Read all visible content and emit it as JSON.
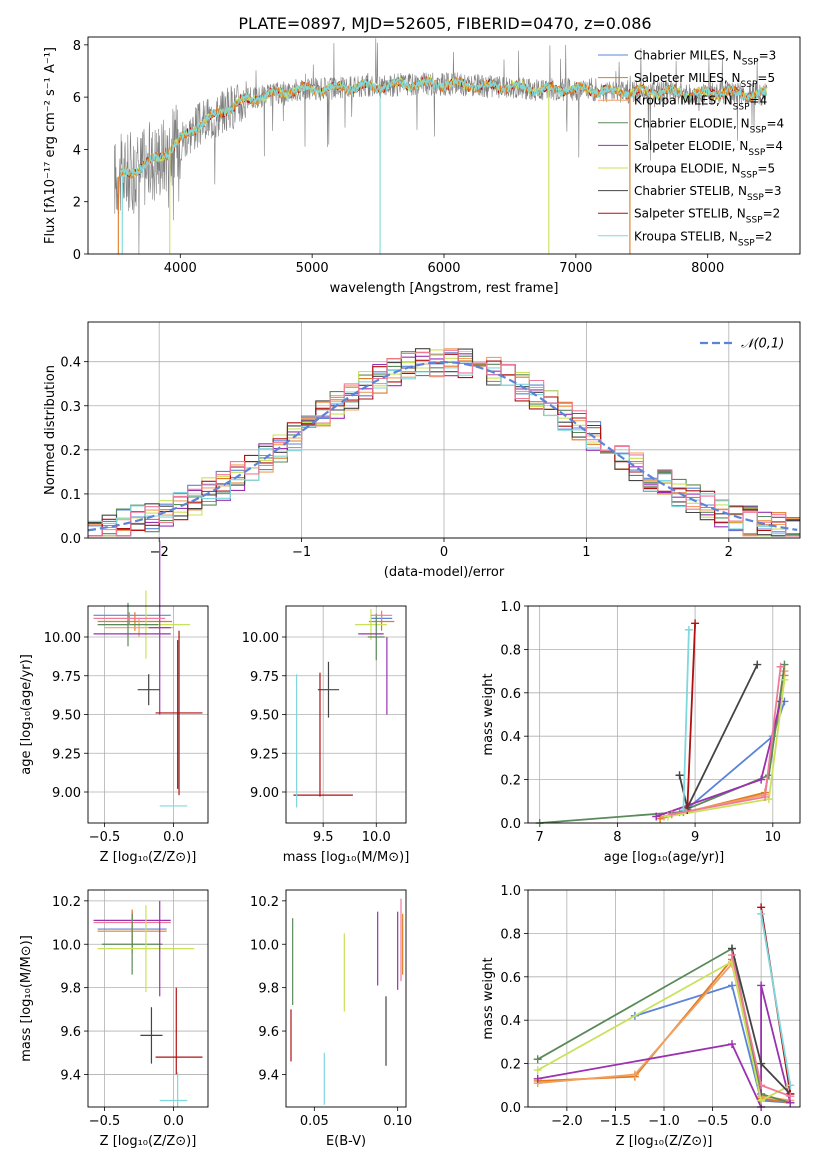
{
  "figure_title": "PLATE=0897, MJD=52605, FIBERID=0470, z=0.086",
  "colors": {
    "Chabrier MILES": "#5b84d8",
    "Salpeter MILES": "#e07b22",
    "Kroupa MILES": "#f0a060",
    "Chabrier ELODIE": "#5a8a5a",
    "Salpeter ELODIE": "#9b30b0",
    "Kroupa ELODIE": "#c8e25a",
    "Chabrier STELIB": "#444444",
    "Salpeter STELIB": "#b01010",
    "Kroupa STELIB": "#7fd8dc",
    "pink": "#f07a9a",
    "gaussian": "#5b84d8",
    "grid": "#b0b0b0"
  },
  "chart_data": [
    {
      "id": "spectrum",
      "type": "line",
      "xlabel": "wavelength [Angstrom, rest frame]",
      "ylabel": "Flux [fλ10⁻¹⁷ erg cm⁻² s⁻¹ A⁻¹]",
      "xlim": [
        3300,
        8700
      ],
      "ylim": [
        0,
        8.3
      ],
      "xticks": [
        4000,
        5000,
        6000,
        7000,
        8000
      ],
      "yticks": [
        0,
        2,
        4,
        6,
        8
      ],
      "grid": false,
      "legend_position": "right",
      "legend": [
        "Chabrier MILES, N_SSP=3",
        "Salpeter MILES, N_SSP=5",
        "Kroupa MILES, N_SSP=4",
        "Chabrier ELODIE, N_SSP=4",
        "Salpeter ELODIE, N_SSP=4",
        "Kroupa ELODIE, N_SSP=5",
        "Chabrier STELIB, N_SSP=3",
        "Salpeter STELIB, N_SSP=2",
        "Kroupa STELIB, N_SSP=2"
      ],
      "continuum_x": [
        3500,
        3700,
        3900,
        4100,
        4300,
        4500,
        4700,
        4900,
        5100,
        5300,
        5500,
        5700,
        5900,
        6100,
        6300,
        6500,
        6700,
        6900,
        7100,
        7300,
        7500,
        7700,
        7900,
        8100,
        8300,
        8400
      ],
      "continuum_y": [
        2.9,
        3.3,
        3.9,
        4.8,
        5.4,
        5.9,
        6.1,
        6.3,
        6.3,
        6.4,
        6.4,
        6.5,
        6.5,
        6.5,
        6.4,
        6.4,
        6.3,
        6.3,
        6.3,
        6.2,
        6.2,
        6.2,
        6.1,
        6.2,
        6.1,
        6.1
      ]
    },
    {
      "id": "residuals",
      "type": "step-histogram",
      "xlabel": "(data-model)/error",
      "ylabel": "Normed distribution",
      "xlim": [
        -2.5,
        2.5
      ],
      "ylim": [
        0,
        0.49
      ],
      "xticks": [
        -2,
        -1,
        0,
        1,
        2
      ],
      "yticks": [
        0.0,
        0.1,
        0.2,
        0.3,
        0.4
      ],
      "grid": true,
      "legend_position": "top-right",
      "legend": [
        "𝒩(0,1)"
      ],
      "bin_width": 0.1
    },
    {
      "id": "age-Z",
      "type": "errorbar",
      "xlabel": "Z [log₁₀(Z/Z⊙)]",
      "ylabel": "age  [log₁₀(age/yr)]",
      "xlim": [
        -0.62,
        0.25
      ],
      "ylim": [
        8.8,
        10.2
      ],
      "xticks": [
        -0.5,
        0.0
      ],
      "yticks": [
        9.0,
        9.25,
        9.5,
        9.75,
        10.0
      ],
      "grid": true,
      "points": [
        {
          "series": "Chabrier MILES",
          "x": -0.3,
          "xerr": 0.28,
          "y": 10.14,
          "yerr": 0.0
        },
        {
          "series": "Salpeter MILES",
          "x": -0.28,
          "xerr": 0.27,
          "y": 10.1,
          "yerr": 0.06
        },
        {
          "series": "Kroupa MILES",
          "x": -0.25,
          "xerr": 0.25,
          "y": 10.06,
          "yerr": 0.06
        },
        {
          "series": "Kroupa ELODIE",
          "x": -0.2,
          "xerr": 0.32,
          "y": 10.08,
          "yerr": 0.22
        },
        {
          "series": "Chabrier ELODIE",
          "x": -0.33,
          "xerr": 0.22,
          "y": 10.08,
          "yerr": 0.14
        },
        {
          "series": "Salpeter ELODIE",
          "x": -0.3,
          "xerr": 0.28,
          "y": 10.02,
          "yerr": 0.0
        },
        {
          "series": "Salpeter ELODIE",
          "x": -0.1,
          "xerr": 0.08,
          "y": 10.06,
          "yerr": 0.56
        },
        {
          "series": "pink",
          "x": -0.32,
          "xerr": 0.26,
          "y": 10.12,
          "yerr": 0.04
        },
        {
          "series": "Chabrier STELIB",
          "x": -0.18,
          "xerr": 0.08,
          "y": 9.66,
          "yerr": 0.1
        },
        {
          "series": "Chabrier STELIB",
          "x": 0.03,
          "xerr": 0.0,
          "y": 9.5,
          "yerr": 0.48
        },
        {
          "series": "Salpeter STELIB",
          "x": 0.04,
          "xerr": 0.17,
          "y": 9.51,
          "yerr": 0.53
        },
        {
          "series": "Kroupa STELIB",
          "x": 0.0,
          "xerr": 0.1,
          "y": 8.91,
          "yerr": 0.0
        }
      ]
    },
    {
      "id": "age-mass",
      "type": "errorbar",
      "xlabel": "mass [log₁₀(M/M⊙)]",
      "ylabel": "",
      "xlim": [
        9.15,
        10.28
      ],
      "ylim": [
        8.8,
        10.2
      ],
      "xticks": [
        9.5,
        10.0
      ],
      "yticks": [
        9.0,
        9.25,
        9.5,
        9.75,
        10.0
      ],
      "grid": true,
      "points": [
        {
          "series": "Chabrier MILES",
          "x": 10.05,
          "xerr": 0.1,
          "y": 10.12,
          "yerr": 0.0
        },
        {
          "series": "Salpeter MILES",
          "x": 10.05,
          "xerr": 0.12,
          "y": 10.1,
          "yerr": 0.06
        },
        {
          "series": "Kroupa ELODIE",
          "x": 9.95,
          "xerr": 0.15,
          "y": 10.08,
          "yerr": 0.1
        },
        {
          "series": "Chabrier ELODIE",
          "x": 10.0,
          "xerr": 0.08,
          "y": 10.0,
          "yerr": 0.15
        },
        {
          "series": "Salpeter ELODIE",
          "x": 9.95,
          "xerr": 0.12,
          "y": 10.02,
          "yerr": 0.0
        },
        {
          "series": "Salpeter ELODIE",
          "x": 10.1,
          "xerr": 0.0,
          "y": 9.75,
          "yerr": 0.25
        },
        {
          "series": "pink",
          "x": 10.05,
          "xerr": 0.1,
          "y": 10.14,
          "yerr": 0.03
        },
        {
          "series": "Chabrier STELIB",
          "x": 9.55,
          "xerr": 0.1,
          "y": 9.66,
          "yerr": 0.18
        },
        {
          "series": "Salpeter STELIB",
          "x": 9.5,
          "xerr": 0.28,
          "y": 8.98,
          "yerr": 0.0
        },
        {
          "series": "Salpeter STELIB",
          "x": 9.47,
          "xerr": 0.0,
          "y": 9.37,
          "yerr": 0.4
        },
        {
          "series": "Kroupa STELIB",
          "x": 9.25,
          "xerr": 0.0,
          "y": 9.33,
          "yerr": 0.43
        },
        {
          "series": "Kroupa STELIB",
          "x": 9.27,
          "xerr": 0.0,
          "y": 8.91,
          "yerr": 0.0
        }
      ]
    },
    {
      "id": "weight-age",
      "type": "line",
      "xlabel": "age  [log₁₀(age/yr)]",
      "ylabel": "mass weight",
      "xlim": [
        6.85,
        10.35
      ],
      "ylim": [
        0,
        1.0
      ],
      "xticks": [
        7,
        8,
        9,
        10
      ],
      "yticks": [
        0.0,
        0.2,
        0.4,
        0.6,
        0.8,
        1.0
      ],
      "grid": true,
      "series": [
        {
          "name": "Chabrier MILES",
          "x": [
            8.85,
            10.0,
            10.15
          ],
          "y": [
            0.05,
            0.4,
            0.56
          ]
        },
        {
          "name": "Salpeter MILES",
          "x": [
            8.55,
            9.9,
            10.15
          ],
          "y": [
            0.02,
            0.14,
            0.68
          ]
        },
        {
          "name": "Kroupa MILES",
          "x": [
            8.6,
            9.9,
            10.15
          ],
          "y": [
            0.03,
            0.13,
            0.7
          ]
        },
        {
          "name": "Chabrier ELODIE",
          "x": [
            7.0,
            8.8,
            9.95,
            10.15
          ],
          "y": [
            0.0,
            0.05,
            0.22,
            0.73
          ]
        },
        {
          "name": "Salpeter ELODIE",
          "x": [
            8.5,
            9.85,
            10.1
          ],
          "y": [
            0.03,
            0.2,
            0.56
          ]
        },
        {
          "name": "Kroupa ELODIE",
          "x": [
            8.65,
            9.95,
            10.15
          ],
          "y": [
            0.03,
            0.11,
            0.66
          ]
        },
        {
          "name": "Chabrier STELIB",
          "x": [
            8.8,
            8.9,
            9.8
          ],
          "y": [
            0.22,
            0.07,
            0.73
          ]
        },
        {
          "name": "Salpeter STELIB",
          "x": [
            8.9,
            9.0
          ],
          "y": [
            0.06,
            0.92
          ]
        },
        {
          "name": "Kroupa STELIB",
          "x": [
            8.85,
            8.92
          ],
          "y": [
            0.06,
            0.89
          ]
        },
        {
          "name": "pink",
          "x": [
            8.7,
            9.9,
            10.1
          ],
          "y": [
            0.04,
            0.12,
            0.72
          ]
        }
      ]
    },
    {
      "id": "mass-Z",
      "type": "errorbar",
      "xlabel": "Z [log₁₀(Z/Z⊙)]",
      "ylabel": "mass [log₁₀(M/M⊙)]",
      "xlim": [
        -0.62,
        0.25
      ],
      "ylim": [
        9.25,
        10.25
      ],
      "xticks": [
        -0.5,
        0.0
      ],
      "yticks": [
        9.4,
        9.6,
        9.8,
        10.0,
        10.2
      ],
      "grid": true,
      "points": [
        {
          "series": "Salpeter ELODIE",
          "x": -0.3,
          "xerr": 0.28,
          "y": 10.11,
          "yerr": 0.0
        },
        {
          "series": "pink",
          "x": -0.3,
          "xerr": 0.28,
          "y": 10.1,
          "yerr": 0.0
        },
        {
          "series": "Chabrier MILES",
          "x": -0.3,
          "xerr": 0.25,
          "y": 10.07,
          "yerr": 0.08
        },
        {
          "series": "Salpeter MILES",
          "x": -0.3,
          "xerr": 0.25,
          "y": 10.06,
          "yerr": 0.1
        },
        {
          "series": "Kroupa MILES",
          "x": -0.3,
          "xerr": 0.25,
          "y": 10.06,
          "yerr": 0.07
        },
        {
          "series": "Chabrier ELODIE",
          "x": -0.3,
          "xerr": 0.22,
          "y": 10.0,
          "yerr": 0.14
        },
        {
          "series": "Kroupa ELODIE",
          "x": -0.2,
          "xerr": 0.35,
          "y": 9.98,
          "yerr": 0.2
        },
        {
          "series": "Salpeter ELODIE",
          "x": -0.1,
          "xerr": 0.0,
          "y": 9.98,
          "yerr": 0.22
        },
        {
          "series": "Chabrier STELIB",
          "x": -0.16,
          "xerr": 0.08,
          "y": 9.58,
          "yerr": 0.13
        },
        {
          "series": "Salpeter STELIB",
          "x": 0.04,
          "xerr": 0.17,
          "y": 9.48,
          "yerr": 0.0
        },
        {
          "series": "Salpeter STELIB",
          "x": 0.02,
          "xerr": 0.0,
          "y": 9.6,
          "yerr": 0.2
        },
        {
          "series": "Kroupa STELIB",
          "x": 0.0,
          "xerr": 0.1,
          "y": 9.28,
          "yerr": 0.0
        },
        {
          "series": "Kroupa STELIB",
          "x": 0.03,
          "xerr": 0.0,
          "y": 9.33,
          "yerr": 0.08
        }
      ]
    },
    {
      "id": "mass-EBV",
      "type": "errorbar",
      "xlabel": "E(B-V)",
      "ylabel": "",
      "xlim": [
        0.033,
        0.105
      ],
      "ylim": [
        9.25,
        10.25
      ],
      "xticks": [
        0.05,
        0.1
      ],
      "yticks": [
        9.4,
        9.6,
        9.8,
        10.0,
        10.2
      ],
      "grid": false,
      "points": [
        {
          "series": "Salpeter STELIB",
          "x": 0.036,
          "xerr": 0.0,
          "y": 9.58,
          "yerr": 0.12
        },
        {
          "series": "Chabrier ELODIE",
          "x": 0.037,
          "xerr": 0.0,
          "y": 9.92,
          "yerr": 0.2
        },
        {
          "series": "Kroupa STELIB",
          "x": 0.056,
          "xerr": 0.0,
          "y": 9.38,
          "yerr": 0.12
        },
        {
          "series": "Kroupa ELODIE",
          "x": 0.068,
          "xerr": 0.0,
          "y": 9.87,
          "yerr": 0.18
        },
        {
          "series": "Salpeter ELODIE",
          "x": 0.088,
          "xerr": 0.0,
          "y": 9.98,
          "yerr": 0.17
        },
        {
          "series": "Chabrier STELIB",
          "x": 0.093,
          "xerr": 0.0,
          "y": 9.6,
          "yerr": 0.16
        },
        {
          "series": "Salpeter ELODIE",
          "x": 0.1,
          "xerr": 0.0,
          "y": 9.97,
          "yerr": 0.18
        },
        {
          "series": "pink",
          "x": 0.102,
          "xerr": 0.0,
          "y": 10.02,
          "yerr": 0.19
        },
        {
          "series": "Salpeter MILES",
          "x": 0.103,
          "xerr": 0.0,
          "y": 10.0,
          "yerr": 0.14
        }
      ]
    },
    {
      "id": "weight-Z",
      "type": "line",
      "xlabel": "Z [log₁₀(Z/Z⊙)]",
      "ylabel": "mass weight",
      "xlim": [
        -2.4,
        0.4
      ],
      "ylim": [
        0,
        1.0
      ],
      "xticks": [
        -2.0,
        -1.5,
        -1.0,
        -0.5,
        0.0
      ],
      "yticks": [
        0.0,
        0.2,
        0.4,
        0.6,
        0.8,
        1.0
      ],
      "grid": true,
      "series": [
        {
          "name": "Chabrier MILES",
          "x": [
            -1.3,
            -0.3,
            0.0,
            0.3
          ],
          "y": [
            0.42,
            0.56,
            0.03,
            0.02
          ]
        },
        {
          "name": "Salpeter MILES",
          "x": [
            -2.3,
            -1.3,
            -0.3,
            0.0,
            0.3
          ],
          "y": [
            0.12,
            0.14,
            0.68,
            0.04,
            0.02
          ]
        },
        {
          "name": "Kroupa MILES",
          "x": [
            -2.3,
            -1.3,
            -0.3,
            0.0,
            0.3
          ],
          "y": [
            0.11,
            0.15,
            0.66,
            0.05,
            0.03
          ]
        },
        {
          "name": "Chabrier ELODIE",
          "x": [
            -2.3,
            -0.3,
            0.0,
            0.3
          ],
          "y": [
            0.22,
            0.73,
            0.06,
            0.02
          ]
        },
        {
          "name": "Salpeter ELODIE",
          "x": [
            -2.3,
            -0.3,
            0.0,
            0.0,
            0.3
          ],
          "y": [
            0.13,
            0.29,
            0.0,
            0.56,
            0.02
          ]
        },
        {
          "name": "Kroupa ELODIE",
          "x": [
            -2.3,
            -0.3,
            0.0,
            0.3
          ],
          "y": [
            0.17,
            0.67,
            0.03,
            0.1
          ]
        },
        {
          "name": "Chabrier STELIB",
          "x": [
            -0.3,
            0.0,
            0.3
          ],
          "y": [
            0.73,
            0.2,
            0.06
          ]
        },
        {
          "name": "Salpeter STELIB",
          "x": [
            0.0,
            0.3
          ],
          "y": [
            0.92,
            0.06
          ]
        },
        {
          "name": "Kroupa STELIB",
          "x": [
            0.0,
            0.3
          ],
          "y": [
            0.89,
            0.1
          ]
        },
        {
          "name": "pink",
          "x": [
            -0.3,
            0.0,
            0.3
          ],
          "y": [
            0.7,
            0.1,
            0.05
          ]
        }
      ]
    }
  ]
}
